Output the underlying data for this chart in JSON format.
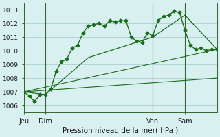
{
  "background_color": "#d8f0f0",
  "grid_color": "#aacfcf",
  "line_color": "#1a6b1a",
  "title": "Pression niveau de la mer( hPa )",
  "ylabel_values": [
    1006,
    1007,
    1008,
    1009,
    1010,
    1011,
    1012,
    1013
  ],
  "x_ticks": [
    0,
    16,
    96,
    120
  ],
  "x_tick_labels": [
    "Jeu",
    "Dim",
    "Ven",
    "Sam"
  ],
  "x_vlines": [
    0,
    16,
    96,
    120
  ],
  "total_hours": 144,
  "series1": {
    "x": [
      0,
      4,
      8,
      12,
      16,
      20,
      24,
      28,
      32,
      36,
      40,
      44,
      48,
      52,
      56,
      60,
      64,
      68,
      72,
      76,
      80,
      84,
      88,
      92,
      96,
      100,
      104,
      108,
      112,
      116,
      120,
      124,
      128,
      132,
      136,
      140,
      144
    ],
    "y": [
      1007.0,
      1006.7,
      1006.3,
      1006.8,
      1006.8,
      1007.2,
      1008.5,
      1009.2,
      1009.4,
      1010.2,
      1010.4,
      1011.3,
      1011.8,
      1011.9,
      1012.0,
      1011.8,
      1012.2,
      1012.1,
      1012.2,
      1012.2,
      1011.0,
      1010.7,
      1010.6,
      1011.3,
      1011.1,
      1012.2,
      1012.5,
      1012.6,
      1012.9,
      1012.8,
      1011.5,
      1010.4,
      1010.1,
      1010.2,
      1010.0,
      1010.1,
      1010.1
    ]
  },
  "series2": {
    "x": [
      0,
      16,
      48,
      96,
      120,
      144
    ],
    "y": [
      1007.0,
      1006.8,
      1009.5,
      1011.0,
      1012.6,
      1010.1
    ]
  },
  "series3": {
    "x": [
      0,
      144
    ],
    "y": [
      1007.0,
      1010.1
    ]
  },
  "series4": {
    "x": [
      0,
      144
    ],
    "y": [
      1007.0,
      1008.0
    ]
  }
}
